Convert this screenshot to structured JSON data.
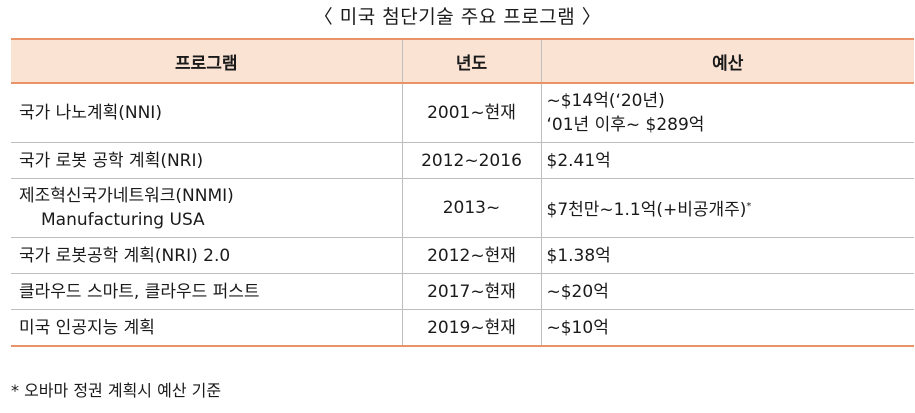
{
  "caption": "〈 미국 첨단기술 주요 프로그램 〉",
  "table": {
    "headers": [
      "프로그램",
      "년도",
      "예산"
    ],
    "rows": [
      {
        "program": [
          "국가 나노계획(NNI)"
        ],
        "year": "2001~현재",
        "budget": [
          "~$14억(‘20년)",
          "‘01년 이후~ $289억"
        ],
        "budget_sup": ""
      },
      {
        "program": [
          "국가 로봇 공학 계획(NRI)"
        ],
        "year": "2012~2016",
        "budget": [
          "$2.41억"
        ],
        "budget_sup": ""
      },
      {
        "program": [
          "제조혁신국가네트워크(NNMI)",
          "Manufacturing USA"
        ],
        "year": "2013~",
        "budget": [
          "$7천만~1.1억(+비공개주)"
        ],
        "budget_sup": "*"
      },
      {
        "program": [
          "국가 로봇공학 계획(NRI) 2.0"
        ],
        "year": "2012~현재",
        "budget": [
          "$1.38억"
        ],
        "budget_sup": ""
      },
      {
        "program": [
          "클라우드 스마트, 클라우드 퍼스트"
        ],
        "year": "2017~현재",
        "budget": [
          "~$20억"
        ],
        "budget_sup": ""
      },
      {
        "program": [
          "미국 인공지능 계획"
        ],
        "year": "2019~현재",
        "budget": [
          "~$10억"
        ],
        "budget_sup": ""
      }
    ]
  },
  "footnote": "* 오바마 정권 계획시 예산 기준",
  "colors": {
    "header_bg": "#fbe3d4",
    "accent_border": "#e89468",
    "grid": "#bdbdbd"
  }
}
